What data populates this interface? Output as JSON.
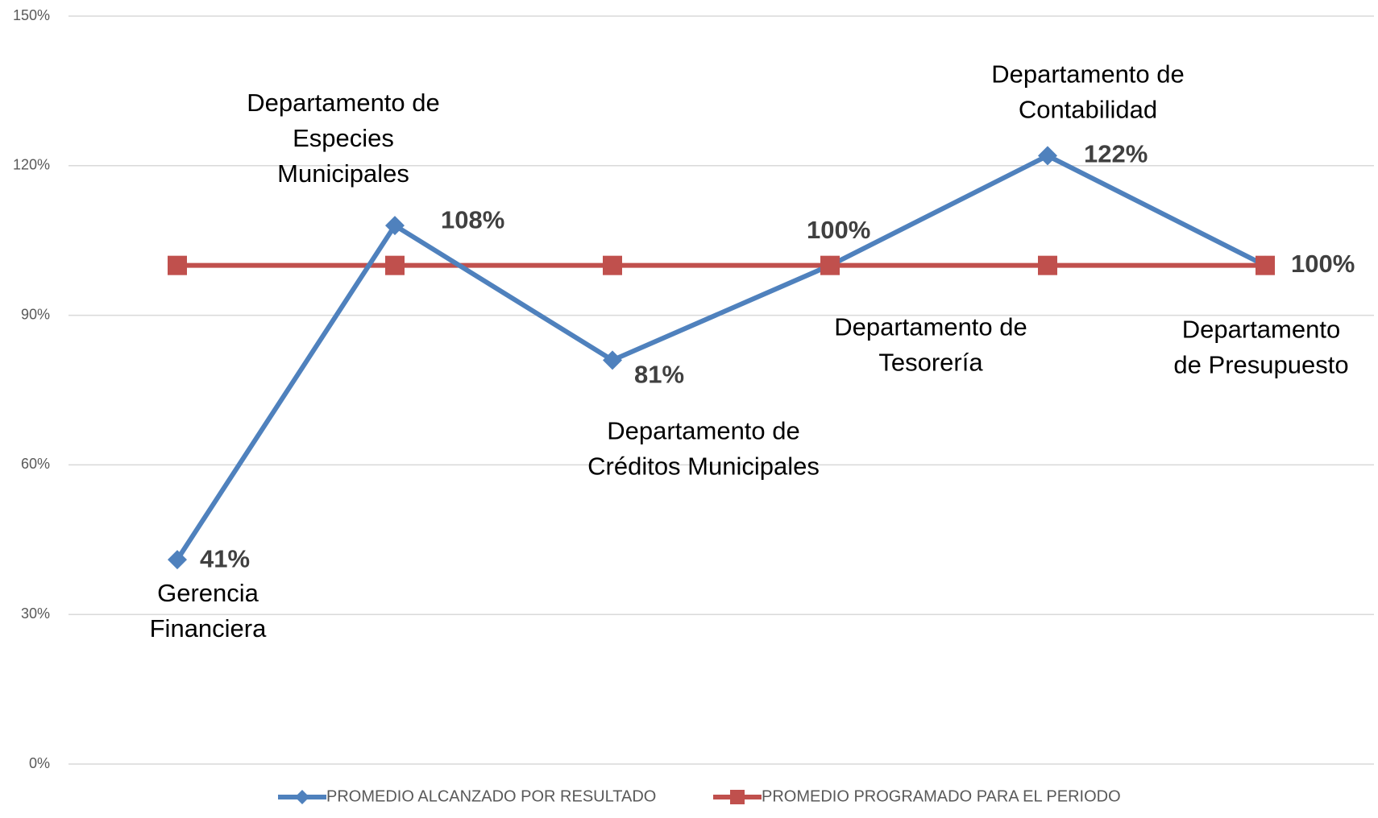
{
  "chart_data": {
    "type": "line",
    "categories": [
      "Gerencia\nFinanciera",
      "Departamento de\nEspecies\nMunicipales",
      "Departamento de\nCréditos Municipales",
      "Departamento de\nTesorería",
      "Departamento de\nContabilidad",
      "Departamento\nde Presupuesto"
    ],
    "series": [
      {
        "name": "PROMEDIO ALCANZADO POR RESULTADO",
        "color": "#4f81bd",
        "values": [
          41,
          108,
          81,
          100,
          122,
          100
        ],
        "value_labels": [
          "41%",
          "108%",
          "81%",
          "100%",
          "122%",
          "100%"
        ]
      },
      {
        "name": "PROMEDIO PROGRAMADO PARA EL PERIODO",
        "color": "#c0504d",
        "values": [
          100,
          100,
          100,
          100,
          100,
          100
        ]
      }
    ],
    "ylim": [
      0,
      150
    ],
    "yticks": [
      {
        "value": 0,
        "label": "0%"
      },
      {
        "value": 30,
        "label": "30%"
      },
      {
        "value": 60,
        "label": "60%"
      },
      {
        "value": 90,
        "label": "90%"
      },
      {
        "value": 120,
        "label": "120%"
      },
      {
        "value": 150,
        "label": "150%"
      }
    ],
    "grid": true,
    "legend": "bottom"
  }
}
